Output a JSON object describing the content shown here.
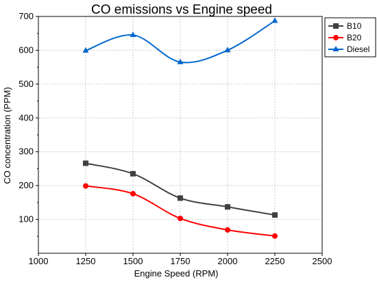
{
  "chart_data": {
    "type": "line",
    "title": "CO emissions vs Engine speed",
    "xlabel": "Engine Speed (RPM)",
    "ylabel": "CO concentration (PPM)",
    "xlim": [
      1000,
      2500
    ],
    "ylim": [
      0,
      700
    ],
    "xticks": [
      1000,
      1250,
      1500,
      1750,
      2000,
      2250,
      2500
    ],
    "yticks": [
      100,
      200,
      300,
      400,
      500,
      600,
      700
    ],
    "grid": true,
    "smoothed": true,
    "legend_position": "top-right",
    "x": [
      1250,
      1500,
      1750,
      2000,
      2250
    ],
    "series": [
      {
        "name": "B10",
        "color": "#404040",
        "marker": "square",
        "values": [
          266,
          235,
          163,
          137,
          113
        ]
      },
      {
        "name": "B20",
        "color": "#ff0000",
        "marker": "circle",
        "values": [
          199,
          176,
          103,
          69,
          51
        ]
      },
      {
        "name": "Diesel",
        "color": "#0066cc",
        "marker": "triangle",
        "values": [
          599,
          645,
          565,
          600,
          687
        ]
      }
    ]
  }
}
